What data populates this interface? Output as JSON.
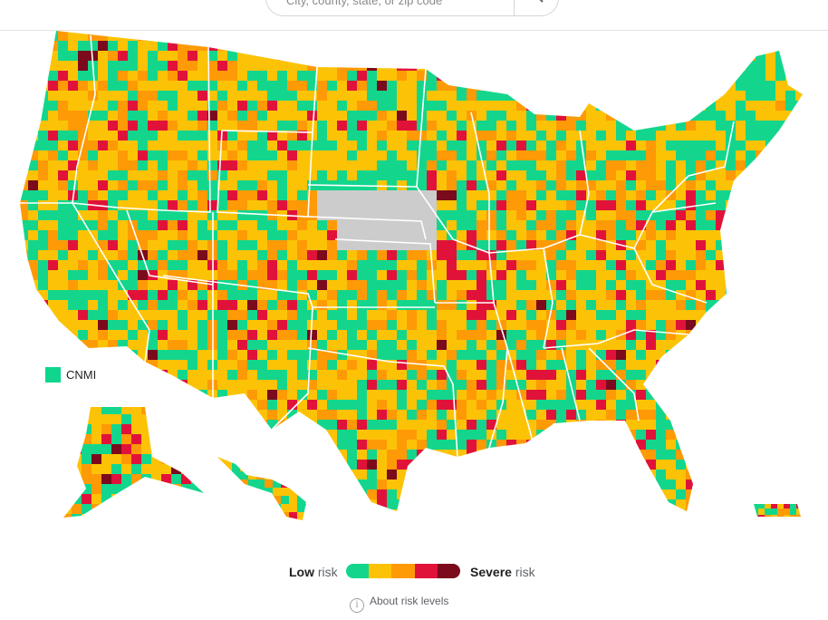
{
  "search": {
    "placeholder": "City, county, state, or zip code"
  },
  "legend": {
    "low_bold": "Low",
    "low_rest": " risk",
    "severe_bold": "Severe",
    "severe_rest": " risk",
    "colors": [
      "#13d68c",
      "#fcc306",
      "#fe9a06",
      "#e0123a",
      "#7a0a1c"
    ]
  },
  "about_link": "About risk levels",
  "territory_label": "CNMI",
  "colors": {
    "low": "#13d68c",
    "moderate": "#fcc306",
    "elevated": "#fe9a06",
    "high": "#e0123a",
    "severe": "#7a0a1c",
    "no_data": "#cccccc"
  }
}
